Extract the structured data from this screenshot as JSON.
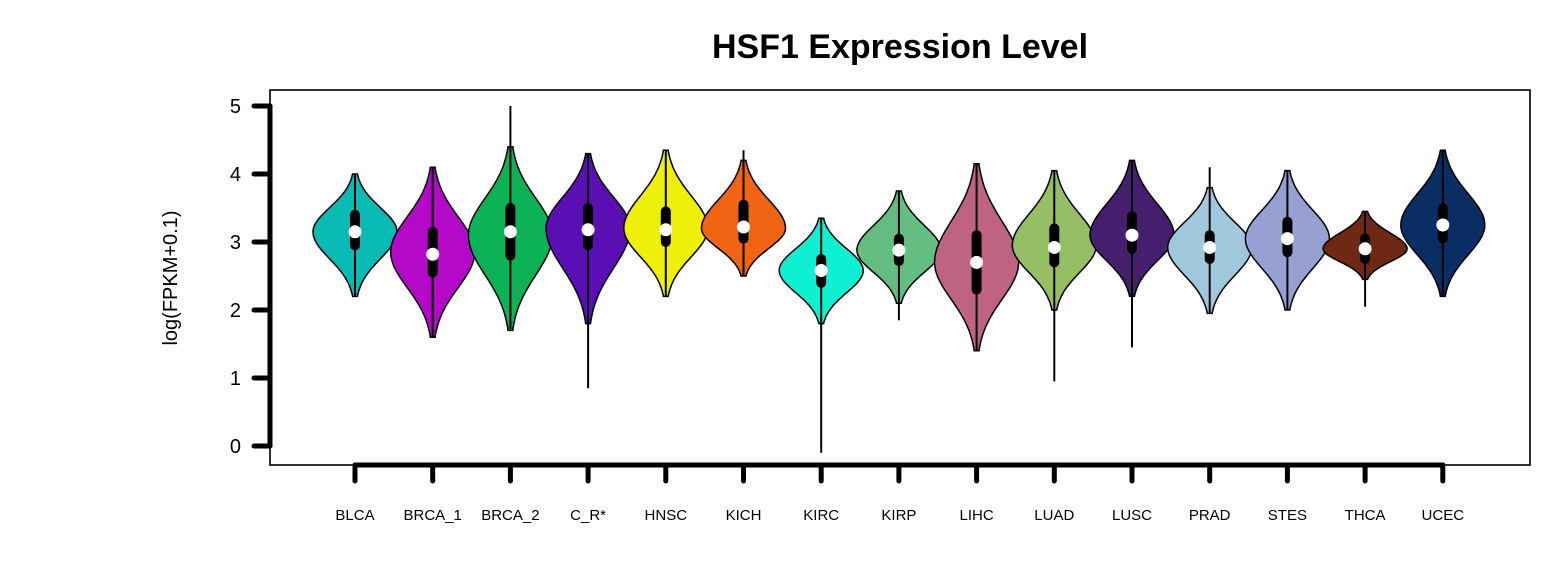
{
  "chart_data": {
    "type": "violin",
    "title": "HSF1 Expression Level",
    "ylabel": "log(FPKM+0.1)",
    "xlabel": "",
    "ylim": [
      0,
      5
    ],
    "yticks": [
      "0",
      "1",
      "2",
      "3",
      "4",
      "5"
    ],
    "grid": false,
    "categories": [
      "BLCA",
      "BRCA_1",
      "BRCA_2",
      "C_R*",
      "HNSC",
      "KICH",
      "KIRC",
      "KIRP",
      "LIHC",
      "LUAD",
      "LUSC",
      "PRAD",
      "STES",
      "THCA",
      "UCEC"
    ],
    "series": [
      {
        "min": 2.2,
        "q1": 2.95,
        "median": 3.15,
        "q3": 3.4,
        "max": 4.0,
        "vmin": 2.2,
        "vmax": 4.0,
        "mode": 3.15,
        "color": "#0ABAB5"
      },
      {
        "min": 1.6,
        "q1": 2.55,
        "median": 2.82,
        "q3": 3.15,
        "max": 4.1,
        "vmin": 1.6,
        "vmax": 4.1,
        "mode": 2.85,
        "color": "#B40AC8"
      },
      {
        "min": 1.72,
        "q1": 2.8,
        "median": 3.15,
        "q3": 3.5,
        "max": 5.0,
        "vmin": 1.7,
        "vmax": 4.4,
        "mode": 3.1,
        "color": "#0DB256"
      },
      {
        "min": 0.85,
        "q1": 2.95,
        "median": 3.18,
        "q3": 3.5,
        "max": 4.3,
        "vmin": 1.8,
        "vmax": 4.3,
        "mode": 3.2,
        "color": "#5A0FB4"
      },
      {
        "min": 2.2,
        "q1": 3.0,
        "median": 3.18,
        "q3": 3.45,
        "max": 4.35,
        "vmin": 2.2,
        "vmax": 4.35,
        "mode": 3.2,
        "color": "#EEF00A"
      },
      {
        "min": 2.5,
        "q1": 3.05,
        "median": 3.22,
        "q3": 3.55,
        "max": 4.35,
        "vmin": 2.5,
        "vmax": 4.2,
        "mode": 3.2,
        "color": "#F06414"
      },
      {
        "min": -0.1,
        "q1": 2.4,
        "median": 2.58,
        "q3": 2.75,
        "max": 3.35,
        "vmin": 1.8,
        "vmax": 3.35,
        "mode": 2.58,
        "color": "#0FF0D2"
      },
      {
        "min": 1.85,
        "q1": 2.72,
        "median": 2.88,
        "q3": 3.05,
        "max": 3.75,
        "vmin": 2.1,
        "vmax": 3.75,
        "mode": 2.88,
        "color": "#64BE82"
      },
      {
        "min": 1.4,
        "q1": 2.3,
        "median": 2.7,
        "q3": 3.1,
        "max": 4.15,
        "vmin": 1.4,
        "vmax": 4.15,
        "mode": 2.7,
        "color": "#BE6482"
      },
      {
        "min": 0.95,
        "q1": 2.7,
        "median": 2.92,
        "q3": 3.2,
        "max": 4.05,
        "vmin": 2.0,
        "vmax": 4.05,
        "mode": 2.95,
        "color": "#96BE64"
      },
      {
        "min": 1.45,
        "q1": 2.9,
        "median": 3.1,
        "q3": 3.38,
        "max": 4.2,
        "vmin": 2.2,
        "vmax": 4.2,
        "mode": 3.1,
        "color": "#461E6E"
      },
      {
        "min": 1.95,
        "q1": 2.75,
        "median": 2.92,
        "q3": 3.1,
        "max": 4.1,
        "vmin": 1.95,
        "vmax": 3.8,
        "mode": 2.92,
        "color": "#A0C8DC"
      },
      {
        "min": 2.0,
        "q1": 2.85,
        "median": 3.05,
        "q3": 3.3,
        "max": 4.05,
        "vmin": 2.0,
        "vmax": 4.05,
        "mode": 3.05,
        "color": "#96A0D2"
      },
      {
        "min": 2.05,
        "q1": 2.75,
        "median": 2.9,
        "q3": 3.05,
        "max": 3.45,
        "vmin": 2.45,
        "vmax": 3.45,
        "mode": 2.9,
        "color": "#6E2814"
      },
      {
        "min": 2.2,
        "q1": 3.05,
        "median": 3.25,
        "q3": 3.5,
        "max": 4.35,
        "vmin": 2.2,
        "vmax": 4.35,
        "mode": 3.25,
        "color": "#0A2D64"
      }
    ]
  }
}
